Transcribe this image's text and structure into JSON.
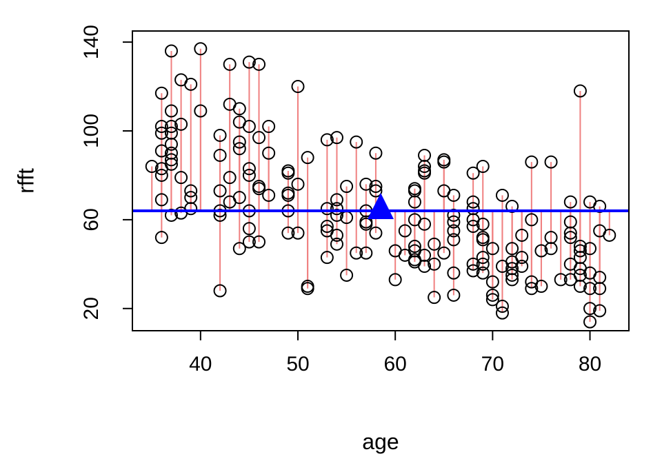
{
  "chart_data": {
    "type": "scatter",
    "xlabel": "age",
    "ylabel": "rfft",
    "xlim": [
      33,
      84
    ],
    "ylim": [
      10,
      145
    ],
    "x_ticks": [
      40,
      50,
      60,
      70,
      80
    ],
    "y_ticks": [
      20,
      60,
      100,
      140
    ],
    "grid": false,
    "mean_line": {
      "y": 64,
      "color": "#0000ff"
    },
    "mean_marker": {
      "x": 58.5,
      "y": 64,
      "shape": "triangle",
      "color": "#0000ff"
    },
    "residual_color": "#f08080",
    "point_color": "#000000",
    "points": [
      [
        35,
        84
      ],
      [
        36,
        117
      ],
      [
        36,
        102
      ],
      [
        36,
        99
      ],
      [
        36,
        91
      ],
      [
        36,
        83
      ],
      [
        36,
        80
      ],
      [
        36,
        69
      ],
      [
        36,
        52
      ],
      [
        37,
        136
      ],
      [
        37,
        109
      ],
      [
        37,
        102
      ],
      [
        37,
        99
      ],
      [
        37,
        94
      ],
      [
        37,
        90
      ],
      [
        37,
        87
      ],
      [
        37,
        85
      ],
      [
        37,
        62
      ],
      [
        38,
        123
      ],
      [
        38,
        103
      ],
      [
        38,
        79
      ],
      [
        38,
        63
      ],
      [
        39,
        121
      ],
      [
        39,
        73
      ],
      [
        39,
        70
      ],
      [
        39,
        65
      ],
      [
        40,
        137
      ],
      [
        40,
        109
      ],
      [
        42,
        98
      ],
      [
        42,
        89
      ],
      [
        42,
        73
      ],
      [
        42,
        64
      ],
      [
        42,
        62
      ],
      [
        42,
        28
      ],
      [
        43,
        130
      ],
      [
        43,
        112
      ],
      [
        43,
        79
      ],
      [
        43,
        68
      ],
      [
        44,
        110
      ],
      [
        44,
        104
      ],
      [
        44,
        95
      ],
      [
        44,
        92
      ],
      [
        44,
        70
      ],
      [
        44,
        47
      ],
      [
        45,
        131
      ],
      [
        45,
        102
      ],
      [
        45,
        83
      ],
      [
        45,
        80
      ],
      [
        45,
        64
      ],
      [
        45,
        56
      ],
      [
        45,
        50
      ],
      [
        46,
        130
      ],
      [
        46,
        97
      ],
      [
        46,
        75
      ],
      [
        46,
        74
      ],
      [
        46,
        50
      ],
      [
        47,
        102
      ],
      [
        47,
        90
      ],
      [
        47,
        71
      ],
      [
        49,
        82
      ],
      [
        49,
        81
      ],
      [
        49,
        72
      ],
      [
        49,
        71
      ],
      [
        49,
        64
      ],
      [
        49,
        54
      ],
      [
        50,
        120
      ],
      [
        50,
        76
      ],
      [
        50,
        54
      ],
      [
        51,
        88
      ],
      [
        51,
        30
      ],
      [
        51,
        29
      ],
      [
        53,
        96
      ],
      [
        53,
        65
      ],
      [
        53,
        57
      ],
      [
        53,
        55
      ],
      [
        53,
        43
      ],
      [
        54,
        97
      ],
      [
        54,
        69
      ],
      [
        54,
        65
      ],
      [
        54,
        62
      ],
      [
        54,
        53
      ],
      [
        54,
        49
      ],
      [
        55,
        75
      ],
      [
        55,
        61
      ],
      [
        55,
        35
      ],
      [
        56,
        95
      ],
      [
        56,
        45
      ],
      [
        57,
        76
      ],
      [
        57,
        64
      ],
      [
        57,
        59
      ],
      [
        57,
        58
      ],
      [
        57,
        45
      ],
      [
        58,
        90
      ],
      [
        58,
        75
      ],
      [
        58,
        73
      ],
      [
        58,
        54
      ],
      [
        60,
        46
      ],
      [
        60,
        33
      ],
      [
        61,
        55
      ],
      [
        61,
        44
      ],
      [
        62,
        74
      ],
      [
        62,
        73
      ],
      [
        62,
        68
      ],
      [
        62,
        60
      ],
      [
        62,
        48
      ],
      [
        62,
        46
      ],
      [
        62,
        42
      ],
      [
        62,
        41
      ],
      [
        63,
        89
      ],
      [
        63,
        84
      ],
      [
        63,
        82
      ],
      [
        63,
        81
      ],
      [
        63,
        58
      ],
      [
        63,
        44
      ],
      [
        63,
        39
      ],
      [
        64,
        49
      ],
      [
        64,
        40
      ],
      [
        64,
        25
      ],
      [
        65,
        87
      ],
      [
        65,
        86
      ],
      [
        65,
        73
      ],
      [
        65,
        45
      ],
      [
        66,
        71
      ],
      [
        66,
        62
      ],
      [
        66,
        59
      ],
      [
        66,
        55
      ],
      [
        66,
        51
      ],
      [
        66,
        36
      ],
      [
        66,
        26
      ],
      [
        68,
        81
      ],
      [
        68,
        68
      ],
      [
        68,
        65
      ],
      [
        68,
        60
      ],
      [
        68,
        57
      ],
      [
        68,
        40
      ],
      [
        68,
        37
      ],
      [
        69,
        84
      ],
      [
        69,
        58
      ],
      [
        69,
        52
      ],
      [
        69,
        51
      ],
      [
        69,
        43
      ],
      [
        69,
        40
      ],
      [
        69,
        36
      ],
      [
        70,
        47
      ],
      [
        70,
        32
      ],
      [
        70,
        26
      ],
      [
        70,
        24
      ],
      [
        71,
        71
      ],
      [
        71,
        39
      ],
      [
        71,
        21
      ],
      [
        71,
        18
      ],
      [
        72,
        66
      ],
      [
        72,
        47
      ],
      [
        72,
        41
      ],
      [
        72,
        38
      ],
      [
        72,
        35
      ],
      [
        72,
        33
      ],
      [
        73,
        53
      ],
      [
        73,
        43
      ],
      [
        73,
        39
      ],
      [
        74,
        86
      ],
      [
        74,
        60
      ],
      [
        74,
        32
      ],
      [
        74,
        29
      ],
      [
        75,
        46
      ],
      [
        75,
        30
      ],
      [
        76,
        86
      ],
      [
        76,
        52
      ],
      [
        76,
        47
      ],
      [
        77,
        33
      ],
      [
        78,
        68
      ],
      [
        78,
        59
      ],
      [
        78,
        54
      ],
      [
        78,
        52
      ],
      [
        78,
        40
      ],
      [
        78,
        33
      ],
      [
        79,
        118
      ],
      [
        79,
        48
      ],
      [
        79,
        46
      ],
      [
        79,
        43
      ],
      [
        79,
        38
      ],
      [
        79,
        35
      ],
      [
        79,
        30
      ],
      [
        80,
        68
      ],
      [
        80,
        47
      ],
      [
        80,
        36
      ],
      [
        80,
        29
      ],
      [
        80,
        20
      ],
      [
        80,
        14
      ],
      [
        81,
        66
      ],
      [
        81,
        55
      ],
      [
        81,
        34
      ],
      [
        81,
        29
      ],
      [
        81,
        19
      ],
      [
        82,
        53
      ]
    ]
  }
}
